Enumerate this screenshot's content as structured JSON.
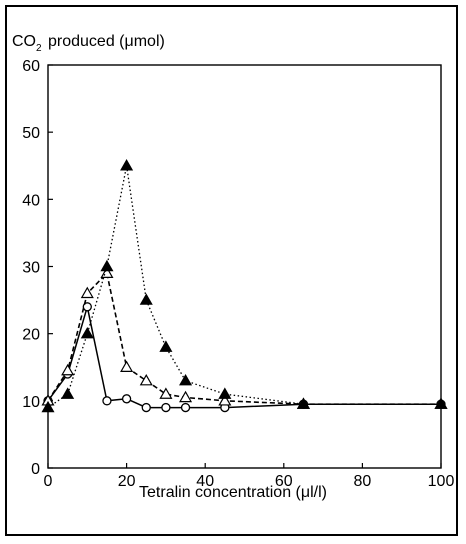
{
  "chart_data": {
    "type": "line",
    "ylabel_prefix": "CO",
    "ylabel_sub": "2",
    "ylabel_rest": " produced (μmol)",
    "xlabel": "Tetralin concentration (μl/l)",
    "xlim": [
      0,
      100
    ],
    "ylim": [
      0,
      60
    ],
    "xticks": [
      0,
      20,
      40,
      60,
      80,
      100
    ],
    "yticks": [
      0,
      10,
      20,
      30,
      40,
      50,
      60
    ],
    "grid": false,
    "series": [
      {
        "style": "solid",
        "marker": "open-circle",
        "color": "#000000",
        "x": [
          0,
          5,
          10,
          15,
          20,
          25,
          30,
          35,
          45,
          65,
          100
        ],
        "y": [
          10,
          14,
          24,
          10,
          10.3,
          9,
          9,
          9,
          9,
          9.5,
          9.5
        ]
      },
      {
        "style": "dashed",
        "marker": "open-triangle",
        "color": "#000000",
        "x": [
          0,
          5,
          10,
          15,
          20,
          25,
          30,
          35,
          45,
          65,
          100
        ],
        "y": [
          10,
          14.5,
          26,
          29,
          15,
          13,
          11,
          10.5,
          10,
          9.5,
          9.5
        ]
      },
      {
        "style": "dotted",
        "marker": "filled-triangle",
        "color": "#000000",
        "x": [
          0,
          5,
          10,
          15,
          20,
          25,
          30,
          35,
          45,
          65,
          100
        ],
        "y": [
          9,
          11,
          20,
          30,
          45,
          25,
          18,
          13,
          11,
          9.5,
          9.5
        ]
      }
    ]
  }
}
